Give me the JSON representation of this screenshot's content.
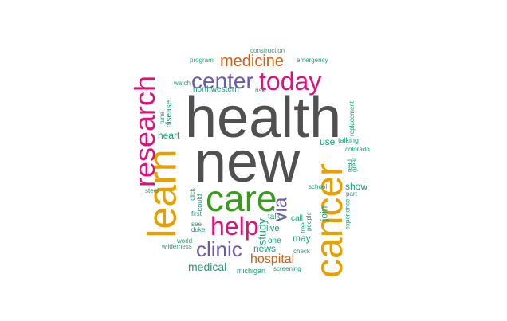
{
  "cloud": {
    "colors": {
      "gray": "#505050",
      "orange": "#e6a000",
      "green": "#3a9a1f",
      "magenta": "#e0107a",
      "purple": "#6a5aa8",
      "rust": "#d2600e",
      "teal": "#1b9e77"
    },
    "words": [
      "health",
      "new",
      "care",
      "learn",
      "cancer",
      "research",
      "today",
      "center",
      "help",
      "clinic",
      "via",
      "medicine",
      "hospital",
      "medical",
      "study",
      "use",
      "news",
      "may",
      "join",
      "show",
      "live",
      "one",
      "talk",
      "call",
      "heart",
      "disease",
      "northwestern",
      "risk",
      "watch",
      "tune",
      "program",
      "construction",
      "emergency",
      "replacement",
      "talking",
      "colorado",
      "read",
      "great",
      "part",
      "school",
      "free",
      "people",
      "check",
      "could",
      "see",
      "duke",
      "first",
      "click",
      "steel",
      "world",
      "wilderness",
      "michigan",
      "screening",
      "experience"
    ]
  }
}
